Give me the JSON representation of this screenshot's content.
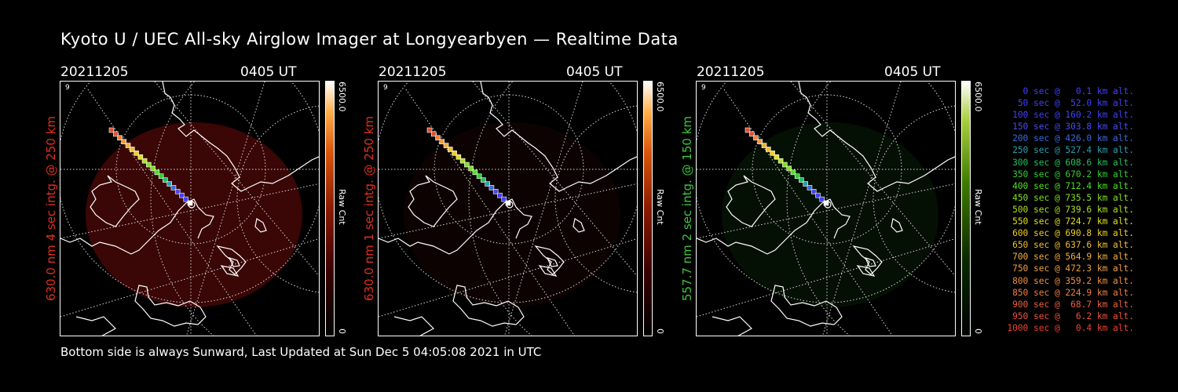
{
  "title": "Kyoto U / UEC All-sky Airglow Imager at Longyearbyen — Realtime Data",
  "footer": "Bottom side is always Sunward, Last Updated at Sun Dec  5 04:05:08 2021 in UTC",
  "panels": [
    {
      "date": "20211205",
      "time": "0405 UT",
      "ylabel": "630.0 nm 4 sec intg. @ 250 km",
      "label_color": "#e0301e",
      "colorbar_max": "6500.0",
      "colorbar_min": "0",
      "colorbar_label": "Raw Cnt"
    },
    {
      "date": "20211205",
      "time": "0405 UT",
      "ylabel": "630.0 nm 1 sec intg. @ 250 km",
      "label_color": "#e0301e",
      "colorbar_max": "6500.0",
      "colorbar_min": "0",
      "colorbar_label": "Raw Cnt"
    },
    {
      "date": "20211205",
      "time": "0405 UT",
      "ylabel": "557.7 nm 2 sec intg. @ 150 km",
      "label_color": "#3ec43e",
      "colorbar_max": "6500.0",
      "colorbar_min": "0",
      "colorbar_label": "Raw Cnt"
    }
  ],
  "legend": [
    {
      "text": "0 sec @   0.1 km alt.",
      "color": "#4040ff"
    },
    {
      "text": "50 sec @  52.0 km alt.",
      "color": "#4040ff"
    },
    {
      "text": "100 sec @ 160.2 km alt.",
      "color": "#4040ff"
    },
    {
      "text": "150 sec @ 303.8 km alt.",
      "color": "#4a4af0"
    },
    {
      "text": "200 sec @ 426.0 km alt.",
      "color": "#3a6ad8"
    },
    {
      "text": "250 sec @ 527.4 km alt.",
      "color": "#2aa0b0"
    },
    {
      "text": "300 sec @ 608.6 km alt.",
      "color": "#22c060"
    },
    {
      "text": "350 sec @ 670.2 km alt.",
      "color": "#30d030"
    },
    {
      "text": "400 sec @ 712.4 km alt.",
      "color": "#50e020"
    },
    {
      "text": "450 sec @ 735.5 km alt.",
      "color": "#80e020"
    },
    {
      "text": "500 sec @ 739.6 km alt.",
      "color": "#b0e020"
    },
    {
      "text": "550 sec @ 724.7 km alt.",
      "color": "#e0e020"
    },
    {
      "text": "600 sec @ 690.8 km alt.",
      "color": "#f0d020"
    },
    {
      "text": "650 sec @ 637.6 km alt.",
      "color": "#f0c030"
    },
    {
      "text": "700 sec @ 564.9 km alt.",
      "color": "#f0b040"
    },
    {
      "text": "750 sec @ 472.3 km alt.",
      "color": "#f0a040"
    },
    {
      "text": "800 sec @ 359.2 km alt.",
      "color": "#f09040"
    },
    {
      "text": "850 sec @ 224.9 km alt.",
      "color": "#f08040"
    },
    {
      "text": "900 sec @  68.7 km alt.",
      "color": "#f06040"
    },
    {
      "text": "950 sec @   6.2 km alt.",
      "color": "#f05040"
    },
    {
      "text": "1000 sec @   0.4 km alt.",
      "color": "#f04030"
    }
  ]
}
